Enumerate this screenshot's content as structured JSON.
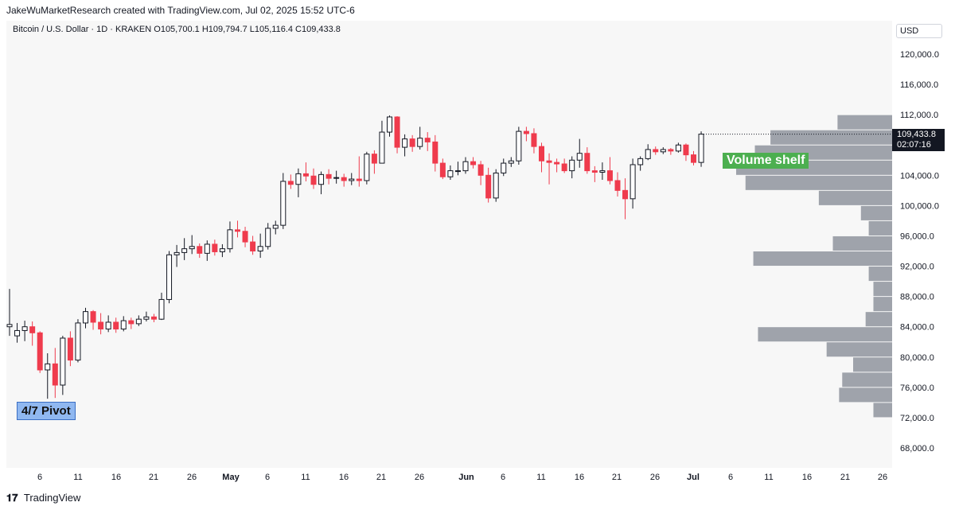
{
  "header": {
    "attribution": "JakeWuMarketResearch created with TradingView.com, Jul 02, 2025 15:52 UTC-6"
  },
  "symbol_line": "Bitcoin / U.S. Dollar · 1D · KRAKEN   O105,700.1  H109,794.7  L105,116.4  C109,433.8",
  "currency": "USD",
  "footer": {
    "logo": "𝟏𝟕",
    "brand": "TradingView"
  },
  "last_price": {
    "value": "109,433.8",
    "countdown": "02:07:16"
  },
  "annotations": {
    "pivot": "4/7 Pivot",
    "shelf": "Volume shelf"
  },
  "colors": {
    "up": "#ffffff",
    "down": "#ef3b4d",
    "wick": "#131722",
    "profile": "#9a9ea6",
    "bg": "#f7f7f7"
  },
  "chart_data": {
    "type": "candlestick",
    "ylim": [
      64000,
      125000
    ],
    "price_ticks": [
      120000,
      116000,
      112000,
      108000,
      104000,
      100000,
      96000,
      92000,
      88000,
      84000,
      80000,
      76000,
      72000,
      68000
    ],
    "price_tick_labels": [
      "120,000.0",
      "116,000.0",
      "112,000.0",
      "",
      "104,000.0",
      "100,000.0",
      "96,000.0",
      "92,000.0",
      "88,000.0",
      "84,000.0",
      "80,000.0",
      "76,000.0",
      "72,000.0",
      "68,000.0"
    ],
    "date_labels": [
      "6",
      "11",
      "16",
      "21",
      "26",
      "May",
      "6",
      "11",
      "16",
      "21",
      "26",
      "Jun",
      "6",
      "11",
      "16",
      "21",
      "26",
      "Jul",
      "6",
      "11",
      "16",
      "21",
      "26"
    ],
    "candles": [
      [
        84000,
        84300,
        89000,
        82800
      ],
      [
        82800,
        83500,
        84500,
        81900
      ],
      [
        83500,
        84000,
        84800,
        82100
      ],
      [
        84000,
        83200,
        84700,
        81500
      ],
      [
        83200,
        78300,
        83400,
        77900
      ],
      [
        78300,
        79100,
        80500,
        74500
      ],
      [
        79100,
        76300,
        81200,
        74600
      ],
      [
        76300,
        82500,
        82800,
        75000
      ],
      [
        82500,
        79600,
        83400,
        78800
      ],
      [
        79600,
        84500,
        85000,
        79300
      ],
      [
        84500,
        86000,
        86500,
        83800
      ],
      [
        86000,
        84600,
        86200,
        83600
      ],
      [
        84600,
        83700,
        85800,
        83000
      ],
      [
        83700,
        84600,
        85500,
        83300
      ],
      [
        84600,
        83700,
        85200,
        83200
      ],
      [
        83700,
        84800,
        85400,
        83400
      ],
      [
        84800,
        84400,
        85200,
        83700
      ],
      [
        84400,
        85000,
        85500,
        84100
      ],
      [
        85000,
        85300,
        86000,
        84700
      ],
      [
        85300,
        85000,
        85700,
        84600
      ],
      [
        85000,
        87600,
        88500,
        84900
      ],
      [
        87600,
        93500,
        94000,
        87100
      ],
      [
        93500,
        93800,
        94800,
        91900
      ],
      [
        93800,
        94300,
        95700,
        92800
      ],
      [
        94300,
        94600,
        96100,
        93600
      ],
      [
        94600,
        93700,
        95000,
        93100
      ],
      [
        93700,
        94900,
        95400,
        92700
      ],
      [
        94900,
        93900,
        95500,
        93400
      ],
      [
        93900,
        94300,
        94900,
        93200
      ],
      [
        94300,
        96800,
        97900,
        93800
      ],
      [
        96800,
        96600,
        98000,
        95800
      ],
      [
        96600,
        95200,
        97200,
        94500
      ],
      [
        95200,
        94000,
        96000,
        93500
      ],
      [
        94000,
        94600,
        96300,
        93100
      ],
      [
        94600,
        97000,
        97700,
        94200
      ],
      [
        97000,
        97400,
        98000,
        96200
      ],
      [
        97400,
        103200,
        104300,
        96900
      ],
      [
        103200,
        102800,
        104100,
        102200
      ],
      [
        102800,
        104200,
        104900,
        101100
      ],
      [
        104200,
        103900,
        105700,
        103200
      ],
      [
        103900,
        102800,
        104900,
        102200
      ],
      [
        102800,
        104100,
        104500,
        101500
      ],
      [
        104100,
        103600,
        104800,
        102800
      ],
      [
        103600,
        103700,
        104600,
        102900
      ],
      [
        103700,
        103300,
        104200,
        102500
      ],
      [
        103300,
        103500,
        104300,
        102700
      ],
      [
        103500,
        103300,
        106500,
        102500
      ],
      [
        103300,
        106800,
        107100,
        102800
      ],
      [
        106800,
        105600,
        107300,
        104200
      ],
      [
        105600,
        109700,
        111200,
        105600
      ],
      [
        109700,
        111700,
        111900,
        109100
      ],
      [
        111700,
        107700,
        111800,
        106900
      ],
      [
        107700,
        108800,
        109400,
        106500
      ],
      [
        108800,
        107800,
        109300,
        107100
      ],
      [
        107800,
        108900,
        110400,
        107400
      ],
      [
        108900,
        108400,
        109700,
        107200
      ],
      [
        108400,
        105600,
        109300,
        104500
      ],
      [
        105600,
        103800,
        106200,
        103500
      ],
      [
        103800,
        104600,
        105300,
        103400
      ],
      [
        104600,
        104600,
        105800,
        104000
      ],
      [
        104600,
        105800,
        106400,
        104200
      ],
      [
        105800,
        105400,
        106400,
        104900
      ],
      [
        105400,
        104000,
        105900,
        102700
      ],
      [
        104000,
        101000,
        105000,
        100400
      ],
      [
        101000,
        104300,
        104800,
        100500
      ],
      [
        104300,
        105600,
        106200,
        103900
      ],
      [
        105600,
        105900,
        106400,
        105100
      ],
      [
        105900,
        109800,
        110400,
        105400
      ],
      [
        109800,
        109500,
        110400,
        108500
      ],
      [
        109500,
        107800,
        110200,
        106900
      ],
      [
        107800,
        105900,
        108300,
        104400
      ],
      [
        105900,
        105700,
        106900,
        102800
      ],
      [
        105700,
        105500,
        106200,
        104400
      ],
      [
        105500,
        104600,
        106200,
        104300
      ],
      [
        104600,
        106000,
        106500,
        103600
      ],
      [
        106000,
        106900,
        108800,
        105000
      ],
      [
        106900,
        104600,
        107700,
        104200
      ],
      [
        104600,
        104400,
        105200,
        103100
      ],
      [
        104400,
        104600,
        105700,
        103400
      ],
      [
        104600,
        103300,
        106400,
        102800
      ],
      [
        103300,
        102000,
        104400,
        101200
      ],
      [
        102000,
        100900,
        103600,
        98200
      ],
      [
        100900,
        105400,
        106200,
        99600
      ],
      [
        105400,
        106200,
        106500,
        104600
      ],
      [
        106200,
        107400,
        108100,
        106000
      ],
      [
        107400,
        107100,
        107800,
        106700
      ],
      [
        107100,
        107400,
        107700,
        106800
      ],
      [
        107400,
        107200,
        107600,
        106700
      ],
      [
        107200,
        108000,
        108300,
        107000
      ],
      [
        108000,
        106700,
        108200,
        105900
      ],
      [
        106700,
        105700,
        107200,
        105300
      ],
      [
        105700,
        109433.8,
        109794.7,
        105116.4
      ]
    ],
    "volume_profile": [
      {
        "low": 110000,
        "high": 112000,
        "rel": 0.35
      },
      {
        "low": 108000,
        "high": 110000,
        "rel": 0.78
      },
      {
        "low": 106000,
        "high": 108000,
        "rel": 0.88
      },
      {
        "low": 104000,
        "high": 106000,
        "rel": 1.0
      },
      {
        "low": 102000,
        "high": 104000,
        "rel": 0.94
      },
      {
        "low": 100000,
        "high": 102000,
        "rel": 0.47
      },
      {
        "low": 98000,
        "high": 100000,
        "rel": 0.2
      },
      {
        "low": 96000,
        "high": 98000,
        "rel": 0.15
      },
      {
        "low": 94000,
        "high": 96000,
        "rel": 0.38
      },
      {
        "low": 92000,
        "high": 94000,
        "rel": 0.89
      },
      {
        "low": 90000,
        "high": 92000,
        "rel": 0.15
      },
      {
        "low": 88000,
        "high": 90000,
        "rel": 0.12
      },
      {
        "low": 86000,
        "high": 88000,
        "rel": 0.12
      },
      {
        "low": 84000,
        "high": 86000,
        "rel": 0.17
      },
      {
        "low": 82000,
        "high": 84000,
        "rel": 0.86
      },
      {
        "low": 80000,
        "high": 82000,
        "rel": 0.42
      },
      {
        "low": 78000,
        "high": 80000,
        "rel": 0.25
      },
      {
        "low": 76000,
        "high": 78000,
        "rel": 0.32
      },
      {
        "low": 74000,
        "high": 76000,
        "rel": 0.34
      },
      {
        "low": 72000,
        "high": 74000,
        "rel": 0.12
      }
    ]
  }
}
